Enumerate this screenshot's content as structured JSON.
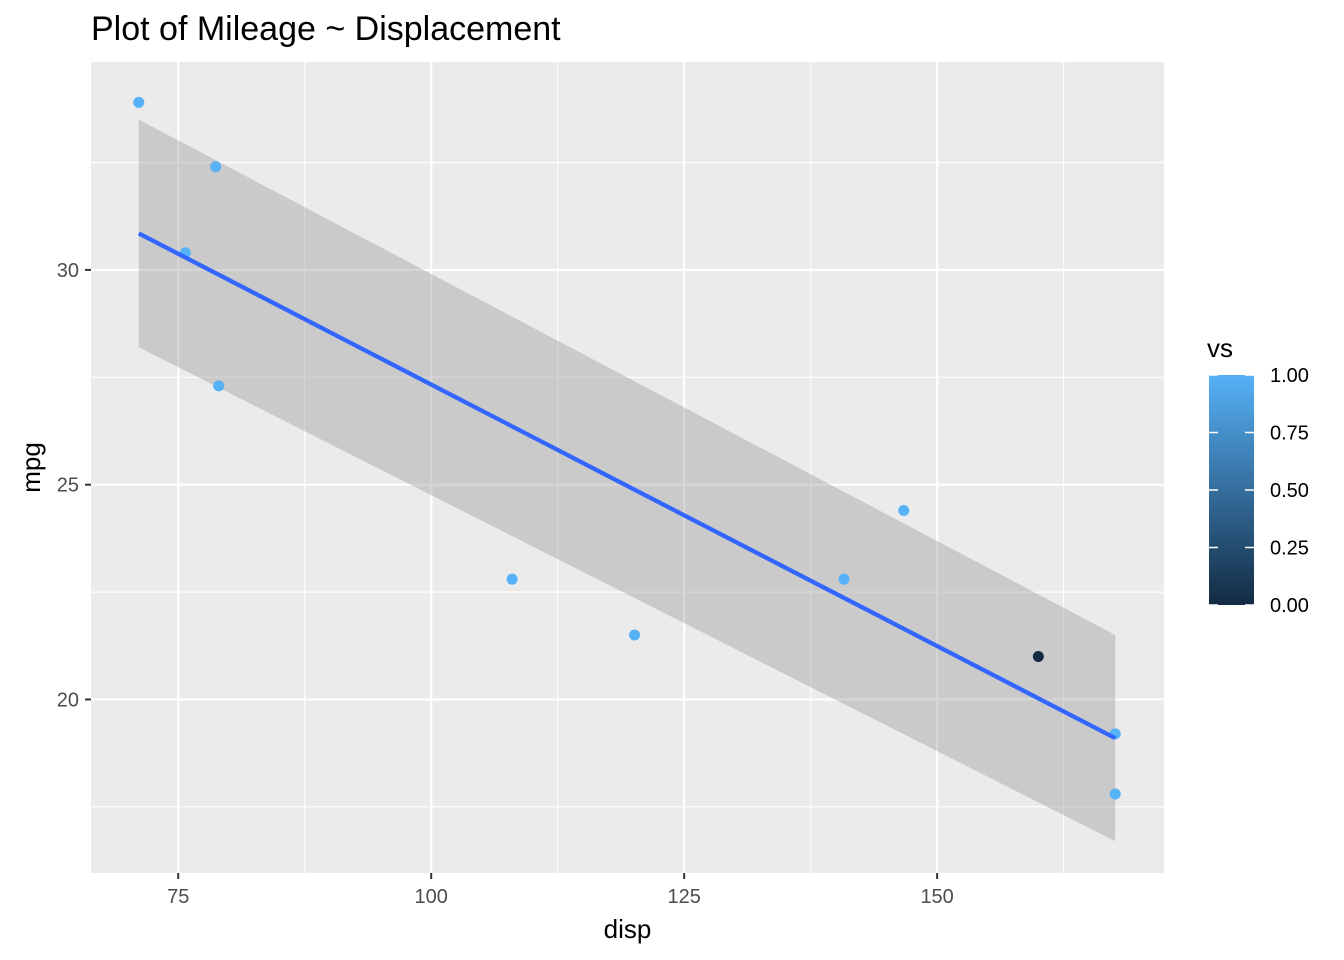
{
  "chart_data": {
    "type": "scatter",
    "title": "Plot of Mileage ~ Displacement",
    "xlabel": "disp",
    "ylabel": "mpg",
    "xlim": [
      66.38,
      172.42
    ],
    "ylim": [
      15.96,
      34.84
    ],
    "x_ticks": [
      75,
      100,
      125,
      150
    ],
    "y_ticks": [
      20,
      25,
      30
    ],
    "x_tick_labels": [
      "75",
      "100",
      "125",
      "150"
    ],
    "y_tick_labels": [
      "20",
      "25",
      "30"
    ],
    "grid": true,
    "points": [
      {
        "x": 71.1,
        "y": 33.9,
        "vs": 1
      },
      {
        "x": 75.7,
        "y": 30.4,
        "vs": 1
      },
      {
        "x": 78.7,
        "y": 32.4,
        "vs": 1
      },
      {
        "x": 79.0,
        "y": 27.3,
        "vs": 1
      },
      {
        "x": 108.0,
        "y": 22.8,
        "vs": 1
      },
      {
        "x": 120.1,
        "y": 21.5,
        "vs": 1
      },
      {
        "x": 140.8,
        "y": 22.8,
        "vs": 1
      },
      {
        "x": 146.7,
        "y": 24.4,
        "vs": 1
      },
      {
        "x": 160.0,
        "y": 21.0,
        "vs": 0
      },
      {
        "x": 167.6,
        "y": 19.2,
        "vs": 1
      },
      {
        "x": 167.6,
        "y": 17.8,
        "vs": 1
      }
    ],
    "smooth": {
      "method": "lm",
      "line_color": "#3366ff",
      "band_color": "#999999",
      "x": [
        71.1,
        167.6
      ],
      "y": [
        30.85,
        19.1
      ],
      "lower": [
        28.2,
        16.7
      ],
      "upper": [
        33.5,
        21.5
      ]
    },
    "color_scale": {
      "variable": "vs",
      "low_color": "#132b43",
      "high_color": "#56b1f7",
      "breaks": [
        1.0,
        0.75,
        0.5,
        0.25,
        0.0
      ],
      "break_labels": [
        "1.00",
        "0.75",
        "0.50",
        "0.25",
        "0.00"
      ]
    },
    "legend_position": "right",
    "panel_background": "#ebebeb",
    "grid_color": "#ffffff"
  }
}
